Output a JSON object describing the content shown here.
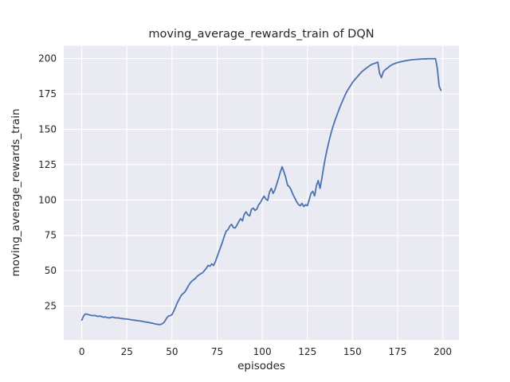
{
  "chart_data": {
    "type": "line",
    "title": "moving_average_rewards_train of DQN",
    "xlabel": "episodes",
    "ylabel": "moving_average_rewards_train",
    "x_ticks": [
      0,
      25,
      50,
      75,
      100,
      125,
      150,
      175,
      200
    ],
    "y_ticks": [
      25,
      50,
      75,
      100,
      125,
      150,
      175,
      200
    ],
    "xlim": [
      -10,
      209
    ],
    "ylim": [
      1,
      209
    ],
    "grid": true,
    "legend_position": "none",
    "colors": {
      "figure_bg": "#ffffff",
      "axes_bg": "#eaeaf2",
      "grid": "#ffffff",
      "line": "#4c72b0",
      "text": "#262626"
    },
    "series": [
      {
        "name": "moving_average_rewards_train",
        "x_start": 0,
        "x_step": 1,
        "values": [
          15.0,
          18.0,
          19.4,
          19.2,
          18.8,
          18.5,
          18.2,
          18.4,
          18.0,
          17.7,
          17.9,
          17.5,
          17.1,
          17.3,
          16.9,
          16.6,
          16.9,
          17.2,
          16.9,
          16.6,
          16.7,
          16.4,
          16.2,
          16.0,
          15.9,
          15.8,
          15.6,
          15.4,
          15.2,
          15.0,
          14.8,
          14.7,
          14.5,
          14.3,
          14.1,
          13.8,
          13.6,
          13.4,
          13.1,
          12.9,
          12.6,
          12.3,
          12.1,
          11.9,
          12.1,
          12.8,
          14.2,
          16.5,
          17.9,
          18.2,
          19.0,
          21.5,
          24.5,
          27.5,
          30.0,
          32.3,
          33.8,
          34.8,
          36.8,
          39.2,
          41.2,
          42.6,
          43.6,
          44.6,
          46.1,
          47.1,
          47.9,
          48.6,
          50.2,
          51.7,
          53.8,
          53.1,
          54.8,
          53.7,
          56.3,
          60.0,
          63.5,
          67.0,
          70.5,
          74.5,
          78.0,
          79.0,
          81.5,
          82.8,
          80.5,
          80.2,
          82.3,
          84.8,
          86.8,
          85.2,
          89.8,
          91.6,
          89.6,
          88.7,
          93.3,
          94.3,
          92.6,
          93.6,
          96.7,
          98.2,
          100.7,
          102.7,
          100.6,
          99.7,
          105.6,
          108.2,
          104.6,
          107.2,
          111.2,
          115.2,
          119.7,
          123.5,
          119.9,
          115.9,
          110.4,
          109.4,
          107.0,
          103.9,
          101.4,
          98.9,
          96.9,
          95.9,
          97.6,
          95.4,
          96.6,
          96.0,
          100.2,
          104.7,
          106.2,
          102.9,
          110.2,
          113.7,
          108.2,
          115.2,
          123.2,
          130.2,
          136.2,
          141.7,
          146.7,
          151.2,
          155.2,
          158.7,
          162.2,
          165.6,
          168.7,
          171.6,
          174.5,
          177.0,
          179.1,
          181.1,
          183.1,
          184.7,
          186.2,
          187.6,
          189.1,
          190.5,
          191.6,
          192.6,
          193.6,
          194.5,
          195.4,
          196.0,
          196.5,
          197.0,
          197.5,
          189.5,
          186.5,
          190.5,
          192.0,
          193.0,
          194.0,
          195.0,
          195.7,
          196.3,
          196.8,
          197.2,
          197.5,
          197.8,
          198.1,
          198.4,
          198.6,
          198.8,
          199.0,
          199.2,
          199.3,
          199.4,
          199.5,
          199.6,
          199.7,
          199.7,
          199.8,
          199.8,
          199.9,
          199.9,
          199.9,
          199.9,
          199.9,
          193.0,
          180.5,
          177.5
        ]
      }
    ]
  }
}
